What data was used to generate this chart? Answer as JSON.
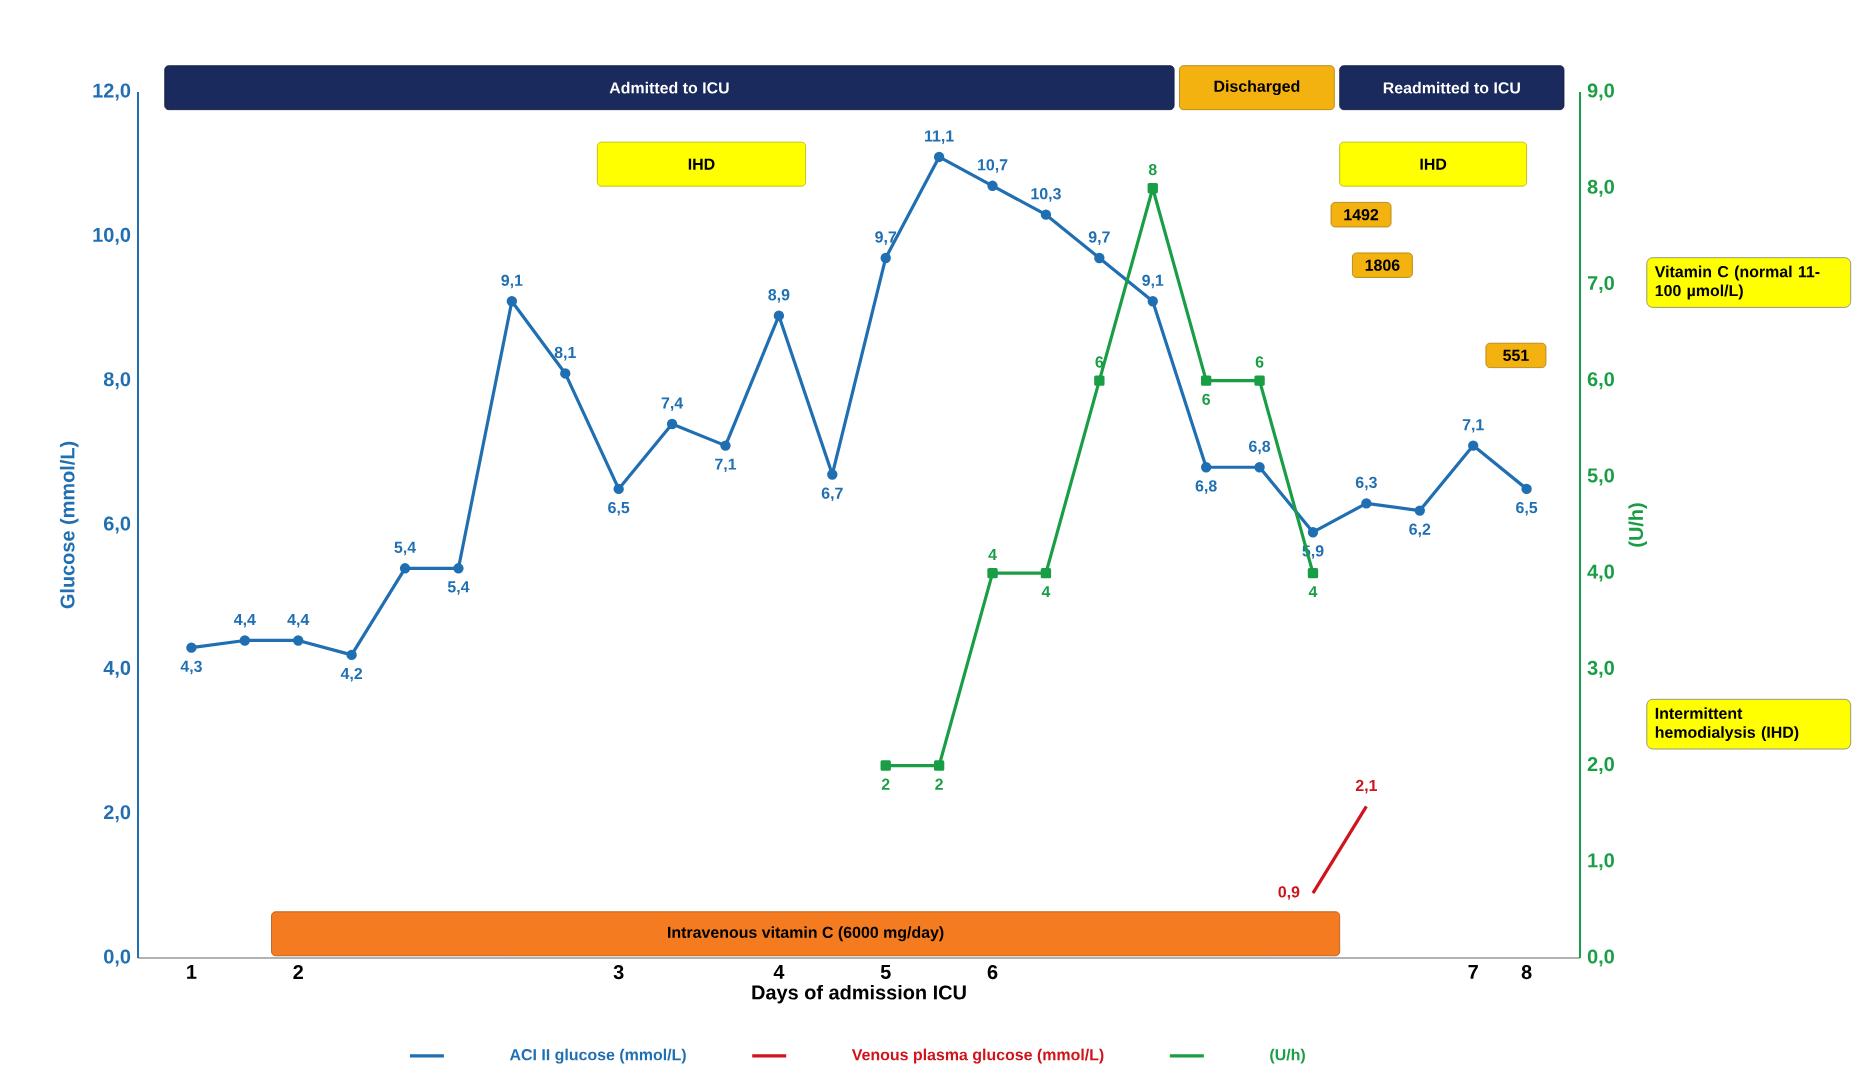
{
  "chart_data": {
    "type": "line",
    "xlabel": "Days of admission ICU",
    "ylabel": "Glucose (mmol/L)",
    "y2label": "(U/h)",
    "categories": [
      "1",
      null,
      "2",
      null,
      null,
      null,
      null,
      null,
      "3",
      null,
      null,
      "4",
      null,
      "5",
      null,
      "6",
      null,
      null,
      null,
      null,
      null,
      null,
      null,
      null,
      "7",
      "8"
    ],
    "series": [
      {
        "name": "ACI II glucose (mmol/L)",
        "color": "#1f6fb2",
        "marker": "circle",
        "values": [
          4.3,
          4.4,
          4.4,
          4.2,
          5.4,
          5.4,
          9.1,
          8.1,
          6.5,
          7.4,
          7.1,
          8.9,
          6.7,
          9.7,
          11.1,
          10.7,
          10.3,
          9.7,
          9.1,
          6.8,
          6.8,
          5.9,
          6.3,
          6.2,
          7.1,
          6.5
        ],
        "value_labels": [
          "4,3",
          "4,4",
          "4,4",
          "4,2",
          "5,4",
          "5,4",
          "9,1",
          "8,1",
          "6,5",
          "7,4",
          "7,1",
          "8,9",
          "6,7",
          "9,7",
          "11,1",
          "10,7",
          "10,3",
          "9,7",
          "9,1",
          "6,8",
          "6,8",
          "5,9",
          "6,3",
          "6,2",
          "7,1",
          "6,5"
        ]
      },
      {
        "name": "Venous plasma glucose (mmol/L)",
        "color": "#d0141b",
        "marker": "none",
        "values": [
          null,
          null,
          null,
          null,
          null,
          null,
          null,
          null,
          null,
          null,
          null,
          null,
          null,
          null,
          null,
          null,
          null,
          null,
          null,
          null,
          null,
          0.9,
          2.1,
          null,
          null,
          null
        ],
        "value_labels": [
          null,
          null,
          null,
          null,
          null,
          null,
          null,
          null,
          null,
          null,
          null,
          null,
          null,
          null,
          null,
          null,
          null,
          null,
          null,
          null,
          null,
          "0,9",
          "2,1",
          null,
          null,
          null
        ]
      },
      {
        "name": "(U/h)",
        "color": "#1a9e45",
        "marker": "square",
        "axis": "y2",
        "values": [
          null,
          null,
          null,
          null,
          null,
          null,
          null,
          null,
          null,
          null,
          null,
          null,
          null,
          2,
          2,
          4,
          4,
          6,
          8,
          6,
          6,
          4,
          null,
          null,
          null,
          null
        ],
        "value_labels": [
          null,
          null,
          null,
          null,
          null,
          null,
          null,
          null,
          null,
          null,
          null,
          null,
          null,
          "2",
          "2",
          "4",
          "4",
          "6",
          "8",
          "6",
          "6",
          "4",
          null,
          null,
          null,
          null
        ]
      }
    ],
    "ylim": [
      0,
      12
    ],
    "yticks": [
      {
        "value": 0,
        "label": "0,0"
      },
      {
        "value": 2,
        "label": "2,0"
      },
      {
        "value": 4,
        "label": "4,0"
      },
      {
        "value": 6,
        "label": "6,0"
      },
      {
        "value": 8,
        "label": "8,0"
      },
      {
        "value": 10,
        "label": "10,0"
      },
      {
        "value": 12,
        "label": "12,0"
      }
    ],
    "y2lim": [
      0,
      9
    ],
    "y2ticks": [
      {
        "value": 0,
        "label": "0,0"
      },
      {
        "value": 1,
        "label": "1,0"
      },
      {
        "value": 2,
        "label": "2,0"
      },
      {
        "value": 3,
        "label": "3,0"
      },
      {
        "value": 4,
        "label": "4,0"
      },
      {
        "value": 5,
        "label": "5,0"
      },
      {
        "value": 6,
        "label": "6,0"
      },
      {
        "value": 7,
        "label": "7,0"
      },
      {
        "value": 8,
        "label": "8,0"
      },
      {
        "value": 9,
        "label": "9,0"
      }
    ],
    "annotations": [
      "Admitted to ICU",
      "Discharged",
      "Readmitted to ICU",
      "IHD",
      "IHD",
      "Intravenous vitamin C (6000 mg/day)",
      "1492",
      "1806",
      "551",
      "Vitamin C (normal 11-100 µmol/L)",
      "Intermittent hemodialysis (IHD)"
    ],
    "legend": "bottom"
  }
}
